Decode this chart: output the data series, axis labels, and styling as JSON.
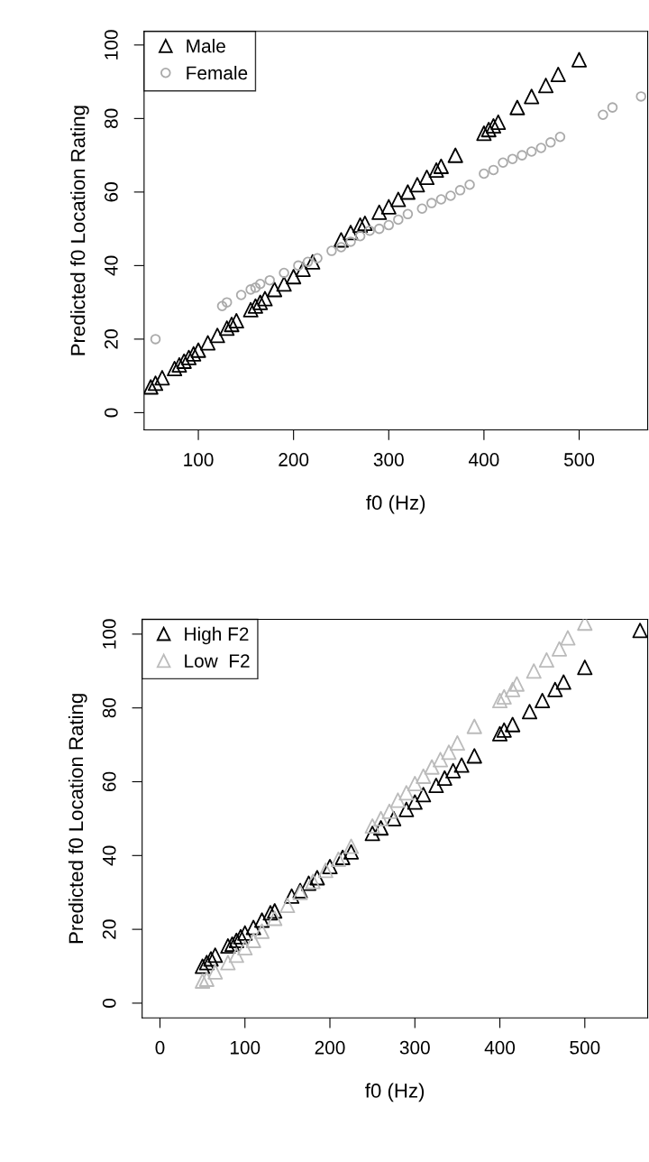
{
  "chart_data": [
    {
      "type": "scatter",
      "xlabel": "f0 (Hz)",
      "ylabel": "Predicted f0 Location Rating",
      "xlim": [
        43,
        572
      ],
      "ylim": [
        -4.7,
        103.7
      ],
      "xticks": [
        100,
        200,
        300,
        400,
        500
      ],
      "yticks": [
        0,
        20,
        40,
        60,
        80,
        100
      ],
      "grid": false,
      "legend": "top left",
      "series": [
        {
          "name": "Male",
          "color": "#000000",
          "marker": "triangle",
          "x": [
            50,
            55,
            62,
            75,
            80,
            85,
            90,
            95,
            100,
            110,
            120,
            130,
            135,
            140,
            155,
            160,
            165,
            170,
            180,
            190,
            200,
            210,
            220,
            250,
            260,
            270,
            275,
            290,
            300,
            310,
            320,
            330,
            340,
            350,
            355,
            370,
            400,
            405,
            410,
            415,
            435,
            450,
            465,
            478,
            500
          ],
          "values": [
            7,
            8,
            9.5,
            12,
            13,
            14,
            15,
            16,
            17,
            19,
            21,
            23,
            24,
            25,
            28,
            29,
            30,
            31,
            33.5,
            35,
            37,
            39,
            41,
            47,
            49,
            51,
            51.5,
            54.5,
            56,
            58,
            60,
            62,
            64,
            66,
            67,
            70,
            76,
            77,
            78,
            79,
            83,
            86,
            89,
            92,
            96
          ]
        },
        {
          "name": "Female",
          "color": "#aaaaaa",
          "marker": "circle",
          "x": [
            55,
            125,
            130,
            145,
            155,
            160,
            165,
            175,
            190,
            205,
            215,
            225,
            240,
            250,
            260,
            270,
            280,
            290,
            300,
            310,
            320,
            335,
            345,
            355,
            365,
            375,
            385,
            400,
            410,
            420,
            430,
            440,
            450,
            460,
            470,
            480,
            525,
            535,
            565
          ],
          "values": [
            20,
            29,
            30,
            32,
            33.5,
            34,
            35,
            36,
            38,
            40,
            41,
            42,
            44,
            45,
            46.5,
            48,
            49.5,
            50,
            51,
            52.5,
            54,
            55.5,
            57,
            58,
            59,
            60.5,
            62,
            65,
            66,
            68,
            69,
            70,
            71,
            72,
            73.5,
            75,
            81,
            83,
            86
          ]
        }
      ]
    },
    {
      "type": "scatter",
      "xlabel": "f0 (Hz)",
      "ylabel": "Predicted f0 Location Rating",
      "xlim": [
        -21,
        574
      ],
      "ylim": [
        -4,
        104
      ],
      "xticks": [
        0,
        100,
        200,
        300,
        400,
        500
      ],
      "yticks": [
        0,
        20,
        40,
        60,
        80,
        100
      ],
      "grid": false,
      "legend": "top left",
      "series": [
        {
          "name": "High F2",
          "color": "#000000",
          "marker": "triangle",
          "x": [
            50,
            55,
            60,
            65,
            80,
            85,
            90,
            95,
            100,
            110,
            120,
            130,
            135,
            155,
            165,
            175,
            185,
            200,
            215,
            225,
            250,
            260,
            275,
            290,
            300,
            310,
            325,
            335,
            345,
            355,
            370,
            400,
            405,
            415,
            435,
            450,
            465,
            475,
            500,
            565
          ],
          "values": [
            10,
            11,
            12,
            13,
            15.5,
            16,
            17,
            18,
            19,
            20.5,
            22.5,
            24.5,
            25,
            29,
            30.5,
            32.5,
            34,
            37,
            39.5,
            41,
            46,
            47.5,
            50,
            52.5,
            54.5,
            56.5,
            59,
            61,
            63,
            64.5,
            67,
            73,
            74,
            75.5,
            79,
            82,
            85,
            87,
            91,
            101
          ]
        },
        {
          "name": "Low  F2",
          "color": "#bbbbbb",
          "marker": "triangle",
          "x": [
            50,
            55,
            65,
            80,
            90,
            100,
            110,
            120,
            135,
            150,
            165,
            180,
            195,
            210,
            225,
            250,
            260,
            270,
            280,
            290,
            300,
            310,
            320,
            330,
            340,
            350,
            370,
            400,
            405,
            415,
            420,
            440,
            455,
            470,
            480,
            500
          ],
          "values": [
            6,
            6.5,
            8.5,
            11,
            13,
            15,
            17,
            19.5,
            23,
            26.5,
            30,
            33,
            36,
            39,
            42.5,
            48,
            50,
            52,
            55,
            57,
            59.5,
            61.5,
            64,
            66,
            68,
            70.5,
            75,
            82,
            83,
            85,
            86.5,
            90,
            93,
            96,
            99,
            103
          ]
        }
      ]
    }
  ]
}
